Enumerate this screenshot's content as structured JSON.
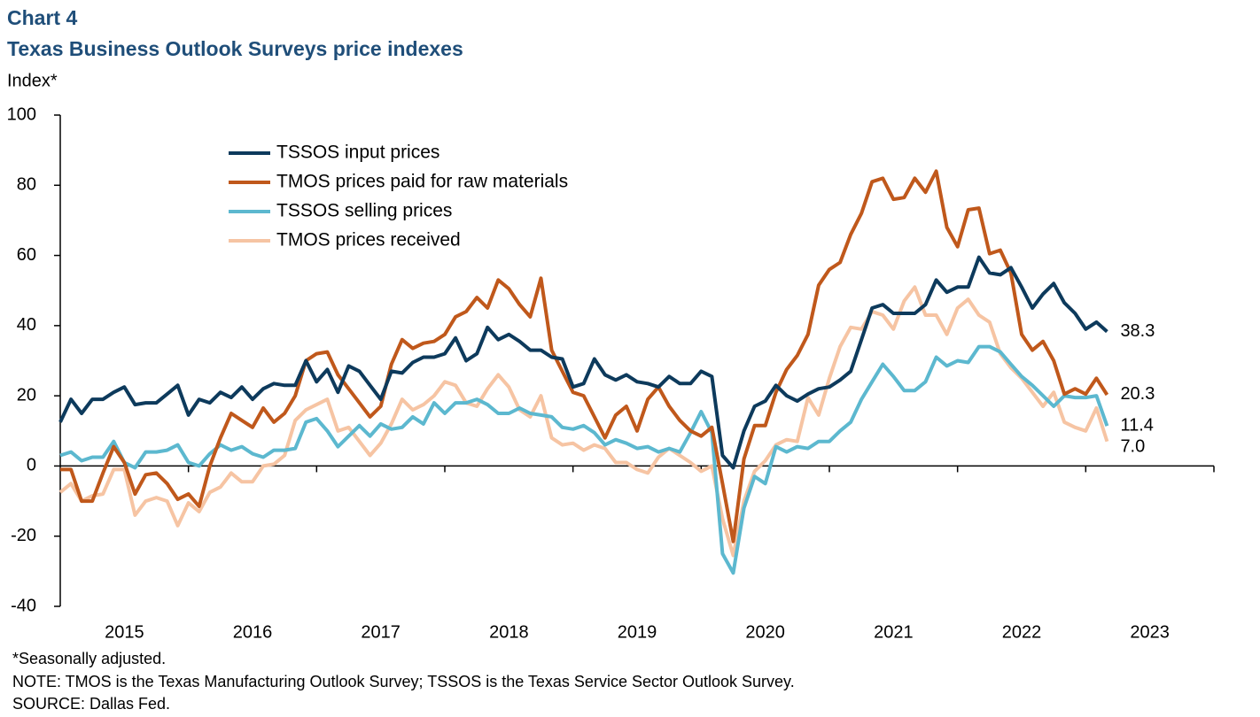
{
  "chart_data": {
    "type": "line",
    "title": "Chart 4",
    "subtitle": "Texas Business Outlook Surveys price indexes",
    "y_label": "Index*",
    "notes": [
      "*Seasonally adjusted.",
      "NOTE: TMOS is the Texas Manufacturing Outlook Survey; TSSOS is the Texas Service Sector Outlook Survey.",
      "SOURCE: Dallas Fed."
    ],
    "categories": [
      null,
      null,
      null,
      null,
      null,
      null,
      "2015",
      null,
      null,
      null,
      null,
      null,
      null,
      null,
      null,
      null,
      null,
      null,
      "2016",
      null,
      null,
      null,
      null,
      null,
      null,
      null,
      null,
      null,
      null,
      null,
      "2017",
      null,
      null,
      null,
      null,
      null,
      null,
      null,
      null,
      null,
      null,
      null,
      "2018",
      null,
      null,
      null,
      null,
      null,
      null,
      null,
      null,
      null,
      null,
      null,
      "2019",
      null,
      null,
      null,
      null,
      null,
      null,
      null,
      null,
      null,
      null,
      null,
      "2020",
      null,
      null,
      null,
      null,
      null,
      null,
      null,
      null,
      null,
      null,
      null,
      "2021",
      null,
      null,
      null,
      null,
      null,
      null,
      null,
      null,
      null,
      null,
      null,
      "2022",
      null,
      null,
      null,
      null,
      null,
      null,
      null,
      null,
      null,
      null,
      null,
      "2023",
      null,
      null,
      null,
      null,
      null
    ],
    "ylim": [
      -40,
      100
    ],
    "yticks": [
      -40,
      -20,
      0,
      20,
      40,
      60,
      80,
      100
    ],
    "grid": false,
    "legend": "upper-left",
    "series": [
      {
        "name": "TSSOS input prices",
        "color": "#0d3a5c",
        "values": [
          12.5,
          19,
          15,
          19,
          19,
          21,
          22.5,
          17.5,
          18,
          18,
          20.5,
          23,
          14.5,
          19,
          18,
          21,
          19.5,
          22.5,
          19,
          22,
          23.5,
          23,
          23,
          30,
          24,
          27.5,
          21,
          28.5,
          27,
          23,
          19,
          27,
          26.5,
          29.5,
          31,
          31,
          32,
          36.5,
          30,
          32,
          39.5,
          36,
          37.5,
          35.5,
          33,
          33,
          31,
          30.5,
          22.5,
          23.5,
          30.5,
          26,
          24.5,
          26,
          24,
          23.5,
          22.5,
          25.5,
          23.5,
          23.5,
          27,
          25.5,
          3,
          -0.5,
          10,
          17,
          18.5,
          23,
          20,
          18.5,
          20.5,
          22,
          22.5,
          24.5,
          27,
          36,
          45,
          46,
          43.5,
          43.5,
          43.5,
          46,
          53,
          49.5,
          51,
          51,
          59.5,
          55,
          54.5,
          56.5,
          51,
          45,
          49,
          52,
          46.5,
          43.5,
          39,
          41,
          38.3,
          null,
          null,
          null,
          null,
          null,
          null,
          null,
          null,
          null
        ],
        "value_labels": {
          "98": "38.3"
        }
      },
      {
        "name": "TMOS prices paid for raw materials",
        "color": "#c0581b",
        "values": [
          -1,
          -1,
          -10,
          -10,
          -2,
          5.5,
          1,
          -8,
          -2.5,
          -2,
          -5,
          -9.5,
          -8,
          -11.5,
          0,
          8,
          15,
          13,
          11,
          16.5,
          12.5,
          15,
          20,
          30,
          32,
          32.5,
          26,
          22,
          18,
          14,
          17,
          29,
          36,
          33.5,
          35,
          35.5,
          37.5,
          42.5,
          44,
          48,
          45,
          53,
          50.5,
          46,
          42.5,
          53.5,
          33,
          27,
          21,
          20,
          14,
          8,
          14.5,
          17,
          10,
          19,
          22.5,
          17,
          13,
          10,
          8.5,
          11,
          -5,
          -21.5,
          2,
          11.5,
          11.5,
          21,
          27.5,
          31.5,
          37.5,
          51.5,
          56,
          58,
          66,
          72,
          81,
          82,
          76,
          76.5,
          82,
          78,
          84,
          68,
          62.5,
          73,
          73.5,
          60.5,
          61.5,
          55,
          37.5,
          33,
          35.5,
          30,
          20.5,
          22,
          20.5,
          25,
          20.3,
          null,
          null,
          null,
          null,
          null,
          null,
          null,
          null,
          null
        ],
        "value_labels": {
          "98": "20.3"
        }
      },
      {
        "name": "TSSOS selling prices",
        "color": "#5cb8cf",
        "values": [
          3,
          4,
          1.5,
          2.5,
          2.5,
          7,
          1,
          -0.5,
          4,
          4,
          4.5,
          6,
          1,
          0,
          3.5,
          6,
          4.5,
          5.5,
          3.5,
          2.5,
          4.5,
          4.5,
          5,
          12.5,
          13.5,
          10,
          5.5,
          8.5,
          11.5,
          8.5,
          12,
          10.5,
          11,
          14,
          12,
          18,
          15,
          18,
          18,
          19,
          17.5,
          15,
          15,
          16.5,
          15,
          14.5,
          14,
          11,
          10.5,
          11.5,
          9.5,
          6,
          7.5,
          6.5,
          5,
          5.5,
          4,
          5,
          4,
          9.5,
          15.5,
          9.5,
          -25,
          -30.5,
          -12,
          -3,
          -5,
          5.5,
          4,
          5.5,
          5,
          7,
          7,
          10,
          12.5,
          19,
          24,
          29,
          25.5,
          21.5,
          21.5,
          24,
          31,
          28.5,
          30,
          29.5,
          34,
          34,
          32.5,
          29,
          25.5,
          23,
          20,
          17,
          20,
          19.5,
          19.5,
          20,
          11.4,
          null,
          null,
          null,
          null,
          null,
          null,
          null,
          null,
          null
        ],
        "value_labels": {
          "98": "11.4"
        }
      },
      {
        "name": "TMOS prices received",
        "color": "#f6c4a3",
        "values": [
          -7.5,
          -5,
          -10,
          -8.5,
          -8,
          -1,
          -1,
          -14,
          -10,
          -9,
          -10,
          -17,
          -10.5,
          -13,
          -7.5,
          -6,
          -2,
          -4.5,
          -4.5,
          0,
          0.5,
          3,
          13,
          16,
          17.5,
          19,
          10,
          11,
          7,
          3,
          6.5,
          12,
          19,
          16,
          17.5,
          20,
          24,
          23,
          18,
          17,
          22,
          26,
          22.5,
          16,
          14,
          20,
          8,
          6,
          6.5,
          4.5,
          6,
          5,
          1,
          1,
          -1,
          -2,
          2.5,
          5,
          3,
          1,
          -1.5,
          0,
          -15,
          -25.5,
          -10,
          -1.5,
          1.5,
          6,
          7.5,
          7,
          19.5,
          14.5,
          25,
          34,
          39.5,
          39,
          44,
          43,
          39,
          47,
          51,
          43,
          43,
          37.5,
          45,
          47.5,
          43,
          41,
          32,
          28,
          25,
          21,
          17,
          21,
          12.5,
          11,
          10,
          16.5,
          7,
          null,
          null,
          null,
          null,
          null,
          null,
          null,
          null,
          null
        ],
        "value_labels": {
          "98": "7.0"
        }
      }
    ]
  }
}
